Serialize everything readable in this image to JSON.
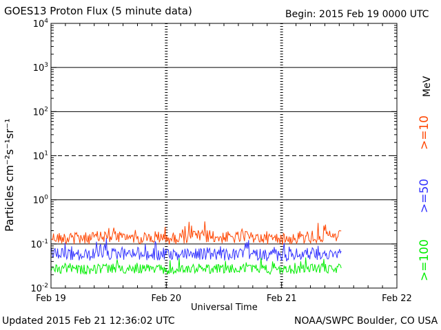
{
  "header": {
    "title": "GOES13 Proton Flux (5 minute data)",
    "begin": "Begin: 2015 Feb 19 0000 UTC"
  },
  "footer": {
    "updated": "Updated 2015 Feb 21 12:36:02 UTC",
    "credit": "NOAA/SWPC Boulder, CO USA"
  },
  "legend": {
    "unit": "MeV",
    "entries": [
      ">=10",
      ">=50",
      ">=100"
    ]
  },
  "chart_data": {
    "type": "line",
    "title": "GOES13 Proton Flux (5 minute data)",
    "xlabel": "Universal Time",
    "ylabel": "Particles cm⁻²s⁻¹sr⁻¹",
    "yscale": "log",
    "ylim": [
      0.01,
      10000
    ],
    "xlim": [
      "2015-02-19 00:00",
      "2015-02-22 00:00"
    ],
    "x_ticks": [
      "Feb 19",
      "Feb 20",
      "Feb 21",
      "Feb 22"
    ],
    "y_ticks": [
      {
        "value": 10000,
        "base": "10",
        "exp": "4"
      },
      {
        "value": 1000,
        "base": "10",
        "exp": "3"
      },
      {
        "value": 100,
        "base": "10",
        "exp": "2"
      },
      {
        "value": 10,
        "base": "10",
        "exp": "1"
      },
      {
        "value": 1,
        "base": "10",
        "exp": "0"
      },
      {
        "value": 0.1,
        "base": "10",
        "exp": "-1"
      },
      {
        "value": 0.01,
        "base": "10",
        "exp": "-2"
      }
    ],
    "thresholds": [
      {
        "value": 1000,
        "style": "solid"
      },
      {
        "value": 100,
        "style": "solid"
      },
      {
        "value": 10,
        "style": "dashed"
      },
      {
        "value": 1,
        "style": "solid"
      },
      {
        "value": 0.1,
        "style": "solid"
      }
    ],
    "grid": false,
    "series": [
      {
        "name": ">=10",
        "color": "#ff4500",
        "x": [
          "2015-02-19 00:00",
          "2015-02-19 06:00",
          "2015-02-19 12:00",
          "2015-02-19 18:00",
          "2015-02-20 00:00",
          "2015-02-20 06:00",
          "2015-02-20 12:00",
          "2015-02-20 18:00",
          "2015-02-21 00:00",
          "2015-02-21 06:00",
          "2015-02-21 12:30"
        ],
        "y": [
          0.14,
          0.13,
          0.15,
          0.14,
          0.13,
          0.15,
          0.14,
          0.14,
          0.13,
          0.14,
          0.15
        ]
      },
      {
        "name": ">=50",
        "color": "#3333ff",
        "x": [
          "2015-02-19 00:00",
          "2015-02-19 06:00",
          "2015-02-19 12:00",
          "2015-02-19 18:00",
          "2015-02-20 00:00",
          "2015-02-20 06:00",
          "2015-02-20 12:00",
          "2015-02-20 18:00",
          "2015-02-21 00:00",
          "2015-02-21 06:00",
          "2015-02-21 12:30"
        ],
        "y": [
          0.06,
          0.055,
          0.06,
          0.058,
          0.055,
          0.06,
          0.057,
          0.058,
          0.055,
          0.06,
          0.058
        ]
      },
      {
        "name": ">=100",
        "color": "#00ee00",
        "x": [
          "2015-02-19 00:00",
          "2015-02-19 06:00",
          "2015-02-19 12:00",
          "2015-02-19 18:00",
          "2015-02-20 00:00",
          "2015-02-20 06:00",
          "2015-02-20 12:00",
          "2015-02-20 18:00",
          "2015-02-21 00:00",
          "2015-02-21 06:00",
          "2015-02-21 12:30"
        ],
        "y": [
          0.028,
          0.026,
          0.028,
          0.027,
          0.026,
          0.028,
          0.027,
          0.027,
          0.026,
          0.028,
          0.027
        ]
      }
    ]
  }
}
